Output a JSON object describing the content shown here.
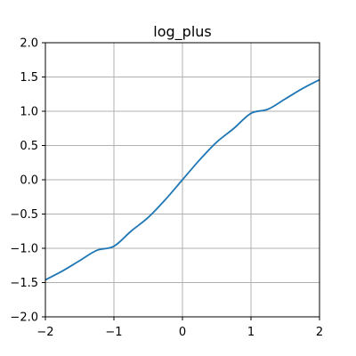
{
  "chart_data": {
    "type": "line",
    "title": "log_plus",
    "xlabel": "",
    "ylabel": "",
    "xlim": [
      -2,
      2
    ],
    "ylim": [
      -2,
      2
    ],
    "grid": true,
    "x_ticks": [
      -2,
      -1,
      0,
      1,
      2
    ],
    "y_ticks": [
      -2.0,
      -1.5,
      -1.0,
      -0.5,
      0.0,
      0.5,
      1.0,
      1.5,
      2.0
    ],
    "x_tick_labels": [
      "−2",
      "−1",
      "0",
      "1",
      "2"
    ],
    "y_tick_labels": [
      "−2.0",
      "−1.5",
      "−1.0",
      "−0.5",
      "0.0",
      "0.5",
      "1.0",
      "1.5",
      "2.0"
    ],
    "series": [
      {
        "color": "#1f77b4",
        "x": [
          -2.0,
          -1.75,
          -1.5,
          -1.25,
          -1.0,
          -0.75,
          -0.5,
          -0.25,
          0.0,
          0.25,
          0.5,
          0.75,
          1.0,
          1.25,
          1.5,
          1.75,
          2.0
        ],
        "y": [
          -1.46,
          -1.33,
          -1.18,
          -1.03,
          -0.97,
          -0.75,
          -0.55,
          -0.29,
          0.0,
          0.29,
          0.55,
          0.75,
          0.97,
          1.03,
          1.18,
          1.33,
          1.46
        ]
      }
    ]
  }
}
